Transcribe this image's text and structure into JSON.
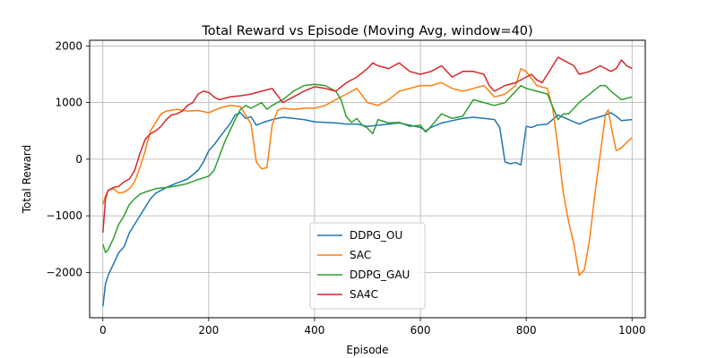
{
  "chart_data": {
    "type": "line",
    "title": "Total Reward vs Episode (Moving Avg, window=40)",
    "xlabel": "Episode",
    "ylabel": "Total Reward",
    "xlim": [
      -25,
      1025
    ],
    "ylim": [
      -2800,
      2100
    ],
    "xticks": [
      0,
      200,
      400,
      600,
      800,
      1000
    ],
    "yticks": [
      -2000,
      -1000,
      0,
      1000,
      2000
    ],
    "xtick_labels": [
      "0",
      "200",
      "400",
      "600",
      "800",
      "1000"
    ],
    "ytick_labels": [
      "−2000",
      "−1000",
      "0",
      "1000",
      "2000"
    ],
    "grid": true,
    "legend_position": "lower-center",
    "series": [
      {
        "name": "DDPG_OU",
        "color": "#1f77b4",
        "points": [
          [
            0,
            -2600
          ],
          [
            5,
            -2200
          ],
          [
            10,
            -2050
          ],
          [
            20,
            -1850
          ],
          [
            30,
            -1650
          ],
          [
            40,
            -1550
          ],
          [
            50,
            -1300
          ],
          [
            60,
            -1150
          ],
          [
            70,
            -1000
          ],
          [
            80,
            -850
          ],
          [
            90,
            -700
          ],
          [
            100,
            -600
          ],
          [
            110,
            -550
          ],
          [
            120,
            -500
          ],
          [
            140,
            -420
          ],
          [
            160,
            -350
          ],
          [
            180,
            -200
          ],
          [
            190,
            -50
          ],
          [
            200,
            150
          ],
          [
            210,
            250
          ],
          [
            220,
            380
          ],
          [
            230,
            500
          ],
          [
            240,
            620
          ],
          [
            250,
            780
          ],
          [
            260,
            820
          ],
          [
            270,
            720
          ],
          [
            280,
            750
          ],
          [
            290,
            600
          ],
          [
            300,
            640
          ],
          [
            320,
            700
          ],
          [
            340,
            740
          ],
          [
            360,
            720
          ],
          [
            380,
            700
          ],
          [
            400,
            660
          ],
          [
            420,
            650
          ],
          [
            440,
            640
          ],
          [
            460,
            620
          ],
          [
            480,
            620
          ],
          [
            500,
            580
          ],
          [
            520,
            600
          ],
          [
            540,
            620
          ],
          [
            560,
            640
          ],
          [
            580,
            600
          ],
          [
            600,
            560
          ],
          [
            610,
            500
          ],
          [
            620,
            560
          ],
          [
            640,
            640
          ],
          [
            660,
            680
          ],
          [
            680,
            720
          ],
          [
            700,
            740
          ],
          [
            720,
            720
          ],
          [
            740,
            700
          ],
          [
            750,
            560
          ],
          [
            760,
            -50
          ],
          [
            770,
            -80
          ],
          [
            780,
            -60
          ],
          [
            790,
            -100
          ],
          [
            800,
            580
          ],
          [
            810,
            560
          ],
          [
            820,
            600
          ],
          [
            840,
            620
          ],
          [
            860,
            780
          ],
          [
            880,
            700
          ],
          [
            900,
            620
          ],
          [
            920,
            700
          ],
          [
            940,
            750
          ],
          [
            950,
            780
          ],
          [
            960,
            820
          ],
          [
            970,
            760
          ],
          [
            980,
            680
          ],
          [
            1000,
            700
          ]
        ]
      },
      {
        "name": "SAC",
        "color": "#ff7f0e",
        "points": [
          [
            0,
            -800
          ],
          [
            5,
            -650
          ],
          [
            10,
            -550
          ],
          [
            20,
            -520
          ],
          [
            30,
            -600
          ],
          [
            40,
            -580
          ],
          [
            50,
            -520
          ],
          [
            60,
            -400
          ],
          [
            70,
            -150
          ],
          [
            80,
            150
          ],
          [
            90,
            500
          ],
          [
            100,
            650
          ],
          [
            110,
            800
          ],
          [
            120,
            850
          ],
          [
            140,
            880
          ],
          [
            160,
            850
          ],
          [
            180,
            860
          ],
          [
            200,
            820
          ],
          [
            220,
            900
          ],
          [
            240,
            950
          ],
          [
            260,
            930
          ],
          [
            280,
            620
          ],
          [
            290,
            -50
          ],
          [
            300,
            -170
          ],
          [
            310,
            -150
          ],
          [
            320,
            600
          ],
          [
            330,
            860
          ],
          [
            340,
            900
          ],
          [
            360,
            880
          ],
          [
            380,
            900
          ],
          [
            400,
            900
          ],
          [
            420,
            950
          ],
          [
            440,
            1050
          ],
          [
            460,
            1150
          ],
          [
            480,
            1250
          ],
          [
            500,
            1000
          ],
          [
            520,
            950
          ],
          [
            540,
            1050
          ],
          [
            560,
            1200
          ],
          [
            580,
            1250
          ],
          [
            600,
            1300
          ],
          [
            620,
            1300
          ],
          [
            640,
            1350
          ],
          [
            660,
            1250
          ],
          [
            680,
            1200
          ],
          [
            700,
            1250
          ],
          [
            720,
            1300
          ],
          [
            740,
            1100
          ],
          [
            760,
            1150
          ],
          [
            780,
            1300
          ],
          [
            790,
            1600
          ],
          [
            800,
            1550
          ],
          [
            820,
            1300
          ],
          [
            840,
            1250
          ],
          [
            850,
            900
          ],
          [
            860,
            200
          ],
          [
            870,
            -600
          ],
          [
            880,
            -1100
          ],
          [
            890,
            -1500
          ],
          [
            900,
            -2050
          ],
          [
            910,
            -1950
          ],
          [
            920,
            -1400
          ],
          [
            930,
            -600
          ],
          [
            940,
            100
          ],
          [
            950,
            800
          ],
          [
            955,
            870
          ],
          [
            960,
            600
          ],
          [
            970,
            150
          ],
          [
            980,
            200
          ],
          [
            990,
            300
          ],
          [
            1000,
            380
          ]
        ]
      },
      {
        "name": "DDPG_GAU",
        "color": "#2ca02c",
        "points": [
          [
            0,
            -1500
          ],
          [
            5,
            -1650
          ],
          [
            10,
            -1600
          ],
          [
            20,
            -1400
          ],
          [
            30,
            -1150
          ],
          [
            40,
            -1000
          ],
          [
            50,
            -800
          ],
          [
            60,
            -700
          ],
          [
            70,
            -620
          ],
          [
            80,
            -580
          ],
          [
            100,
            -520
          ],
          [
            120,
            -500
          ],
          [
            140,
            -470
          ],
          [
            160,
            -430
          ],
          [
            180,
            -360
          ],
          [
            200,
            -300
          ],
          [
            210,
            -200
          ],
          [
            220,
            50
          ],
          [
            230,
            300
          ],
          [
            240,
            500
          ],
          [
            250,
            700
          ],
          [
            260,
            880
          ],
          [
            270,
            950
          ],
          [
            280,
            900
          ],
          [
            300,
            1000
          ],
          [
            310,
            880
          ],
          [
            320,
            950
          ],
          [
            340,
            1050
          ],
          [
            360,
            1200
          ],
          [
            380,
            1300
          ],
          [
            400,
            1320
          ],
          [
            420,
            1300
          ],
          [
            440,
            1200
          ],
          [
            450,
            1050
          ],
          [
            460,
            750
          ],
          [
            470,
            650
          ],
          [
            480,
            720
          ],
          [
            490,
            600
          ],
          [
            500,
            550
          ],
          [
            510,
            450
          ],
          [
            520,
            700
          ],
          [
            540,
            640
          ],
          [
            560,
            650
          ],
          [
            580,
            580
          ],
          [
            600,
            600
          ],
          [
            610,
            480
          ],
          [
            620,
            580
          ],
          [
            640,
            800
          ],
          [
            660,
            720
          ],
          [
            680,
            760
          ],
          [
            700,
            1050
          ],
          [
            720,
            1000
          ],
          [
            740,
            950
          ],
          [
            760,
            1000
          ],
          [
            780,
            1200
          ],
          [
            790,
            1300
          ],
          [
            800,
            1250
          ],
          [
            820,
            1200
          ],
          [
            840,
            1150
          ],
          [
            860,
            700
          ],
          [
            870,
            800
          ],
          [
            880,
            800
          ],
          [
            900,
            1000
          ],
          [
            920,
            1150
          ],
          [
            940,
            1300
          ],
          [
            950,
            1300
          ],
          [
            960,
            1200
          ],
          [
            980,
            1050
          ],
          [
            1000,
            1100
          ]
        ]
      },
      {
        "name": "SA4C",
        "color": "#d62728",
        "points": [
          [
            0,
            -1300
          ],
          [
            5,
            -700
          ],
          [
            10,
            -550
          ],
          [
            20,
            -500
          ],
          [
            30,
            -480
          ],
          [
            40,
            -400
          ],
          [
            50,
            -350
          ],
          [
            60,
            -200
          ],
          [
            70,
            100
          ],
          [
            80,
            350
          ],
          [
            90,
            450
          ],
          [
            100,
            500
          ],
          [
            110,
            580
          ],
          [
            120,
            700
          ],
          [
            130,
            780
          ],
          [
            140,
            800
          ],
          [
            150,
            850
          ],
          [
            160,
            950
          ],
          [
            170,
            1000
          ],
          [
            180,
            1150
          ],
          [
            190,
            1200
          ],
          [
            200,
            1180
          ],
          [
            210,
            1100
          ],
          [
            220,
            1050
          ],
          [
            240,
            1100
          ],
          [
            260,
            1120
          ],
          [
            280,
            1150
          ],
          [
            300,
            1200
          ],
          [
            320,
            1250
          ],
          [
            340,
            1000
          ],
          [
            360,
            1100
          ],
          [
            380,
            1200
          ],
          [
            400,
            1280
          ],
          [
            420,
            1250
          ],
          [
            440,
            1200
          ],
          [
            460,
            1350
          ],
          [
            480,
            1450
          ],
          [
            500,
            1600
          ],
          [
            510,
            1700
          ],
          [
            520,
            1650
          ],
          [
            540,
            1600
          ],
          [
            560,
            1700
          ],
          [
            580,
            1550
          ],
          [
            600,
            1500
          ],
          [
            620,
            1550
          ],
          [
            640,
            1650
          ],
          [
            660,
            1450
          ],
          [
            680,
            1550
          ],
          [
            700,
            1550
          ],
          [
            720,
            1500
          ],
          [
            730,
            1300
          ],
          [
            740,
            1200
          ],
          [
            760,
            1300
          ],
          [
            780,
            1350
          ],
          [
            800,
            1450
          ],
          [
            810,
            1500
          ],
          [
            820,
            1400
          ],
          [
            830,
            1350
          ],
          [
            840,
            1500
          ],
          [
            850,
            1650
          ],
          [
            860,
            1800
          ],
          [
            870,
            1750
          ],
          [
            880,
            1700
          ],
          [
            890,
            1650
          ],
          [
            900,
            1500
          ],
          [
            920,
            1550
          ],
          [
            940,
            1650
          ],
          [
            960,
            1550
          ],
          [
            970,
            1600
          ],
          [
            980,
            1750
          ],
          [
            990,
            1650
          ],
          [
            1000,
            1600
          ]
        ]
      }
    ]
  }
}
